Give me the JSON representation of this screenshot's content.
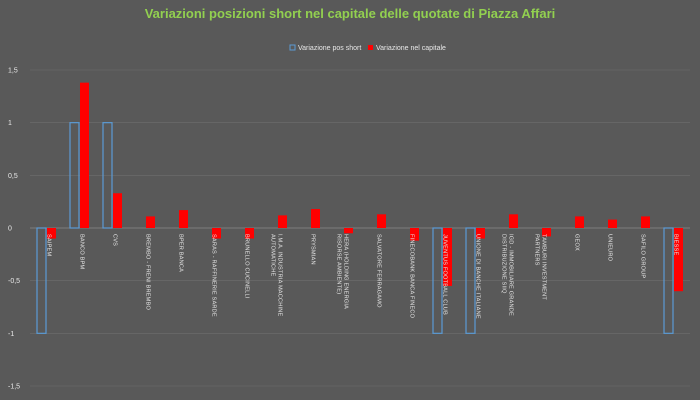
{
  "chart_data": {
    "type": "bar",
    "title": "Variazioni posizioni short nel capitale delle quotate di Piazza Affari",
    "xlabel": "",
    "ylabel": "",
    "ylim": [
      -1.5,
      1.5
    ],
    "yticks": [
      "1,5",
      "1",
      "0,5",
      "0",
      "-0,5",
      "-1",
      "-1,5"
    ],
    "ytick_values": [
      1.5,
      1,
      0.5,
      0,
      -0.5,
      -1,
      -1.5
    ],
    "grid": true,
    "legend_position": "top-center",
    "categories": [
      "SAIPEM",
      "BANCO BPM",
      "CVS",
      "BREMBO - FRENI BREMBO",
      "BPER BANCA",
      "SARAS - RAFFINERIE SARDE",
      "BRUNELLO CUCINELLI",
      "I.M.A. INDUSTRIA MACCHINE AUTOMATICHE",
      "PRYSMIAN",
      "HERA (HOLDING ENERGIA RISORSE AMBIENTE)",
      "SALVATORE FERRAGAMO",
      "FINECOBANK BANCA FINECO",
      "JUVENTUS FOOTBALL CLUB",
      "UNIONE DI BANCHE ITALIANE",
      "IGD - IMMOBILIARE GRANDE DISTRIBUZIONE SIIQ",
      "TAMBURI INVESTMENT PARTNERS",
      "GEOX",
      "UNIEURO",
      "SAFILO GROUP",
      "BIESSE"
    ],
    "series": [
      {
        "name": "Variazione pos short",
        "color": "#5b9bd5",
        "style": "outline",
        "values": [
          -1,
          1,
          1,
          0,
          0,
          0,
          0,
          0,
          0,
          0,
          0,
          0,
          -1,
          -1,
          0,
          0,
          0,
          0,
          0,
          -1
        ]
      },
      {
        "name": "Variazione nel capitale",
        "color": "#ff0000",
        "style": "filled",
        "values": [
          -0.1,
          1.38,
          0.33,
          0.11,
          0.17,
          -0.1,
          -0.1,
          0.12,
          0.18,
          -0.05,
          0.13,
          -0.12,
          -0.55,
          -0.1,
          0.13,
          -0.08,
          0.11,
          0.08,
          0.11,
          -0.6
        ]
      }
    ]
  }
}
